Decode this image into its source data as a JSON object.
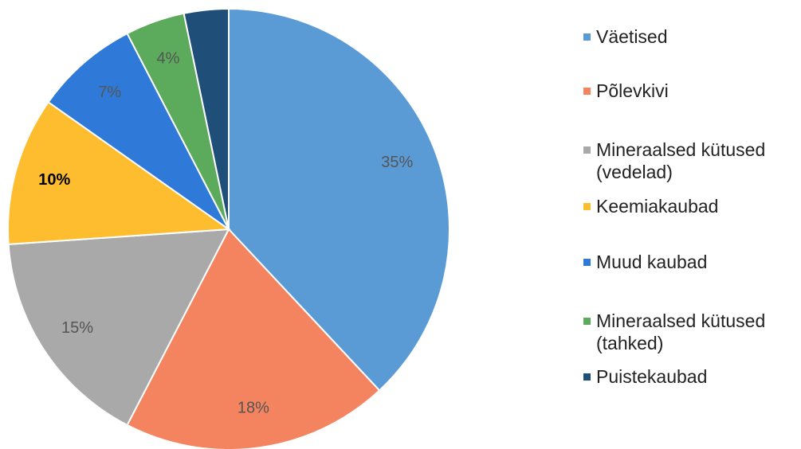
{
  "chart_data": {
    "type": "pie",
    "categories": [
      "Väetised",
      "Põlevkivi",
      "Mineraalsed kütused (vedelad)",
      "Keemiakaubad",
      "Muud kaubad",
      "Mineraalsed kütused (tahked)",
      "Puistekaubad"
    ],
    "values": [
      35,
      18,
      15,
      10,
      7,
      4,
      3
    ],
    "value_labels": [
      "35%",
      "18%",
      "15%",
      "10%",
      "7%",
      "4%",
      null
    ],
    "colors": [
      "#5b9bd5",
      "#f4845f",
      "#a9a9a9",
      "#fdbd2e",
      "#2f7ad8",
      "#5caa5c",
      "#1f4e79"
    ],
    "legend": "right"
  }
}
